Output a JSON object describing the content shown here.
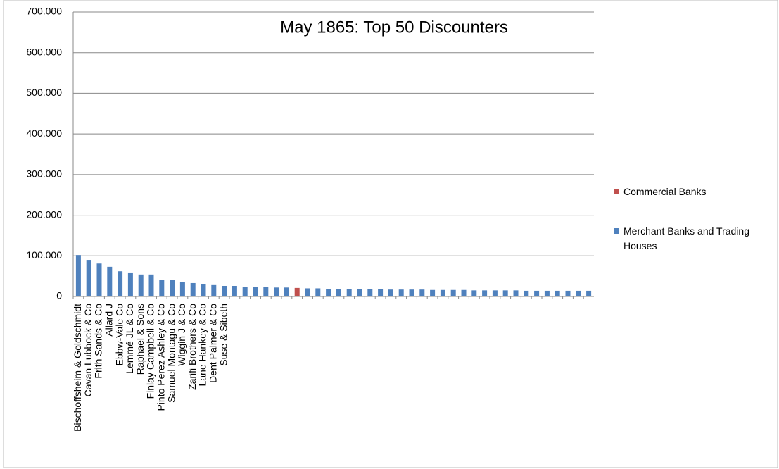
{
  "chart_data": {
    "type": "bar",
    "title": "May 1865: Top 50 Discounters",
    "categories": [
      "Bischoffsheim & Goldschmidt",
      "Cavan Lubbock & Co",
      "Frith Sands & Co",
      "Allard J",
      "Ebbw-Vale Co",
      "Lemmé JL & Co",
      "Raphael & Sons",
      "Finlay Campbell & Co",
      "Pinto Perez Ashley & Co",
      "Samuel Montagu & Co",
      "Wiggin J & Co",
      "Zarifi Brothers & Co",
      "Lane Hankey & Co",
      "Dent Palmer & Co",
      "Suse & Sibeth",
      null,
      null,
      null,
      null,
      null,
      null,
      null,
      null,
      null,
      null,
      null,
      null,
      null,
      null,
      null,
      null,
      null,
      null,
      null,
      null,
      null,
      null,
      null,
      null,
      null,
      null,
      null,
      null,
      null,
      null,
      null,
      null,
      null,
      null,
      null
    ],
    "series": [
      {
        "name": "Commercial Banks",
        "color": "#c0504d",
        "values": [
          null,
          null,
          null,
          null,
          null,
          null,
          null,
          null,
          null,
          null,
          null,
          null,
          null,
          null,
          null,
          null,
          null,
          null,
          null,
          null,
          null,
          21000,
          null,
          null,
          null,
          null,
          null,
          null,
          null,
          null,
          null,
          null,
          null,
          null,
          null,
          null,
          null,
          null,
          null,
          null,
          null,
          null,
          null,
          null,
          null,
          null,
          null,
          null,
          null,
          null
        ]
      },
      {
        "name": "Merchant Banks and Trading Houses",
        "color": "#4f81bd",
        "values": [
          102000,
          90000,
          81000,
          73000,
          62000,
          59000,
          54000,
          54000,
          40000,
          40000,
          35000,
          33000,
          31000,
          28000,
          26000,
          26000,
          24000,
          24000,
          23000,
          22000,
          22000,
          null,
          20000,
          20000,
          19000,
          19000,
          19000,
          19000,
          18000,
          18000,
          17000,
          17000,
          17000,
          17000,
          16000,
          16000,
          16000,
          16000,
          15000,
          15000,
          15000,
          15000,
          15000,
          14000,
          14000,
          14000,
          14000,
          14000,
          14000,
          14000
        ]
      }
    ],
    "ylim": [
      0,
      700000
    ],
    "yticks": [
      {
        "value": 0,
        "label": "0"
      },
      {
        "value": 100000,
        "label": "100.000"
      },
      {
        "value": 200000,
        "label": "200.000"
      },
      {
        "value": 300000,
        "label": "300.000"
      },
      {
        "value": 400000,
        "label": "400.000"
      },
      {
        "value": 500000,
        "label": "500.000"
      },
      {
        "value": 600000,
        "label": "600.000"
      },
      {
        "value": 700000,
        "label": "700.000"
      }
    ],
    "grid": true
  }
}
